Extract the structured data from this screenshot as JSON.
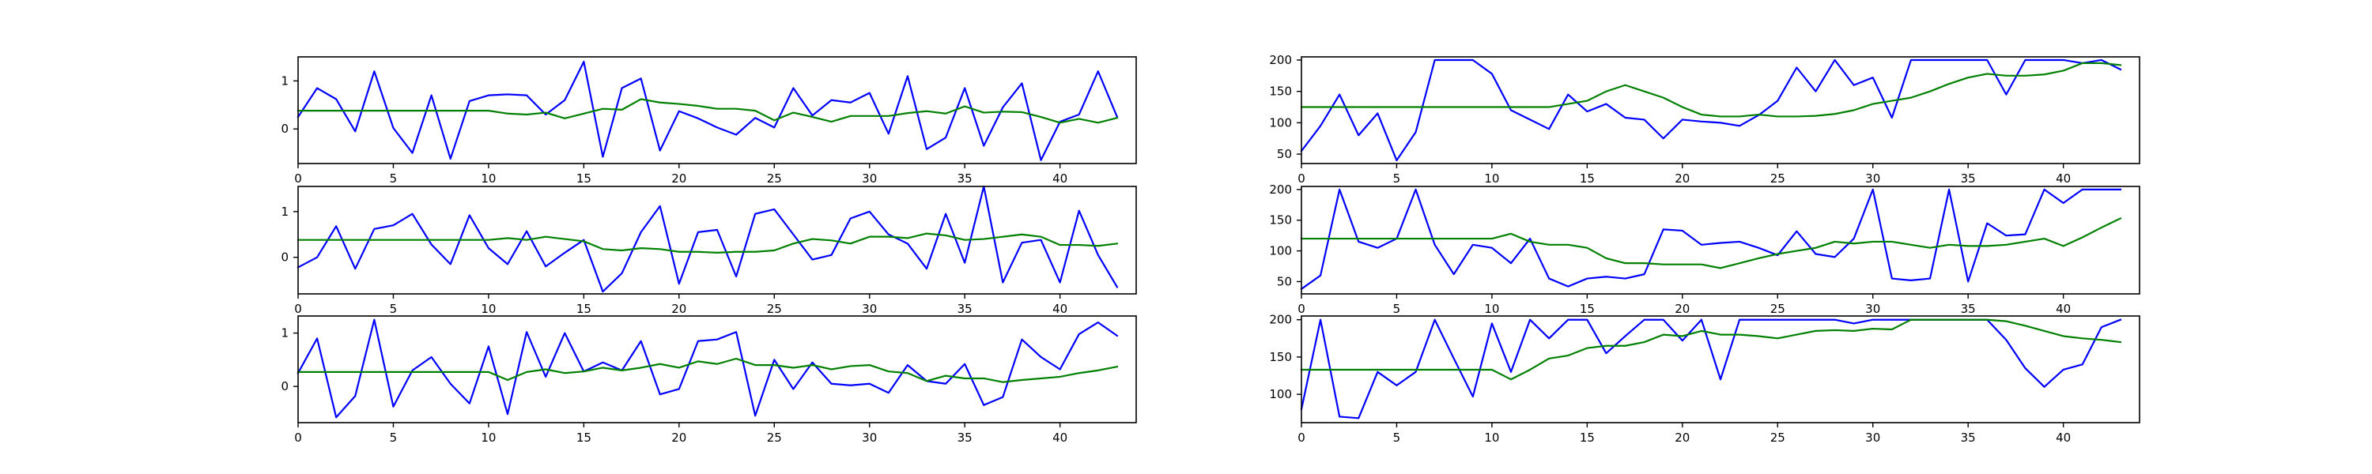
{
  "figure": {
    "line_colors": {
      "blue": "#0000ff",
      "green": "#008000"
    }
  },
  "chart_data": [
    {
      "type": "line",
      "position": "left-1",
      "x": [
        0,
        1,
        2,
        3,
        4,
        5,
        6,
        7,
        8,
        9,
        10,
        11,
        12,
        13,
        14,
        15,
        16,
        17,
        18,
        19,
        20,
        21,
        22,
        23,
        24,
        25,
        26,
        27,
        28,
        29,
        30,
        31,
        32,
        33,
        34,
        35,
        36,
        37,
        38,
        39,
        40,
        41,
        42,
        43
      ],
      "xlim": [
        0,
        44
      ],
      "ylim": [
        -0.72,
        1.5
      ],
      "xticks": [
        0,
        5,
        10,
        15,
        20,
        25,
        30,
        35,
        40
      ],
      "yticks": [
        0,
        1
      ],
      "grid": false,
      "series": [
        {
          "color": "#0000ff",
          "values": [
            0.25,
            0.85,
            0.62,
            -0.05,
            1.2,
            0.02,
            -0.5,
            0.7,
            -0.62,
            0.58,
            0.7,
            0.72,
            0.7,
            0.3,
            0.6,
            1.4,
            -0.58,
            0.85,
            1.05,
            -0.45,
            0.37,
            0.22,
            0.03,
            -0.12,
            0.23,
            0.03,
            0.85,
            0.28,
            0.6,
            0.55,
            0.75,
            -0.1,
            1.1,
            -0.42,
            -0.18,
            0.85,
            -0.35,
            0.45,
            0.95,
            -0.65,
            0.15,
            0.3,
            1.2,
            0.25
          ]
        },
        {
          "color": "#008000",
          "values": [
            0.38,
            0.38,
            0.38,
            0.38,
            0.38,
            0.38,
            0.38,
            0.38,
            0.38,
            0.38,
            0.38,
            0.32,
            0.3,
            0.34,
            0.22,
            0.32,
            0.42,
            0.4,
            0.62,
            0.55,
            0.52,
            0.48,
            0.42,
            0.42,
            0.38,
            0.18,
            0.34,
            0.25,
            0.15,
            0.27,
            0.27,
            0.27,
            0.33,
            0.37,
            0.32,
            0.47,
            0.34,
            0.36,
            0.35,
            0.25,
            0.13,
            0.21,
            0.13,
            0.23
          ]
        }
      ]
    },
    {
      "type": "line",
      "position": "left-2",
      "x": [
        0,
        1,
        2,
        3,
        4,
        5,
        6,
        7,
        8,
        9,
        10,
        11,
        12,
        13,
        14,
        15,
        16,
        17,
        18,
        19,
        20,
        21,
        22,
        23,
        24,
        25,
        26,
        27,
        28,
        29,
        30,
        31,
        32,
        33,
        34,
        35,
        36,
        37,
        38,
        39,
        40,
        41,
        42,
        43
      ],
      "xlim": [
        0,
        44
      ],
      "ylim": [
        -0.8,
        1.55
      ],
      "xticks": [
        0,
        5,
        10,
        15,
        20,
        25,
        30,
        35,
        40
      ],
      "yticks": [
        0,
        1
      ],
      "grid": false,
      "series": [
        {
          "color": "#0000ff",
          "values": [
            -0.22,
            0.0,
            0.68,
            -0.25,
            0.62,
            0.7,
            0.95,
            0.28,
            -0.15,
            0.92,
            0.2,
            -0.15,
            0.57,
            -0.2,
            0.1,
            0.38,
            -0.75,
            -0.35,
            0.55,
            1.12,
            -0.58,
            0.55,
            0.6,
            -0.42,
            0.95,
            1.05,
            0.5,
            -0.05,
            0.05,
            0.85,
            1.0,
            0.5,
            0.3,
            -0.25,
            0.95,
            -0.12,
            1.55,
            -0.55,
            0.32,
            0.38,
            -0.55,
            1.02,
            0.05,
            -0.65
          ]
        },
        {
          "color": "#008000",
          "values": [
            0.38,
            0.38,
            0.38,
            0.38,
            0.38,
            0.38,
            0.38,
            0.38,
            0.38,
            0.38,
            0.38,
            0.42,
            0.38,
            0.45,
            0.4,
            0.35,
            0.18,
            0.15,
            0.2,
            0.18,
            0.12,
            0.12,
            0.1,
            0.12,
            0.12,
            0.15,
            0.3,
            0.4,
            0.37,
            0.3,
            0.45,
            0.45,
            0.42,
            0.52,
            0.48,
            0.38,
            0.4,
            0.45,
            0.5,
            0.45,
            0.27,
            0.27,
            0.25,
            0.3
          ]
        }
      ]
    },
    {
      "type": "line",
      "position": "left-3",
      "x": [
        0,
        1,
        2,
        3,
        4,
        5,
        6,
        7,
        8,
        9,
        10,
        11,
        12,
        13,
        14,
        15,
        16,
        17,
        18,
        19,
        20,
        21,
        22,
        23,
        24,
        25,
        26,
        27,
        28,
        29,
        30,
        31,
        32,
        33,
        34,
        35,
        36,
        37,
        38,
        39,
        40,
        41,
        42,
        43
      ],
      "xlim": [
        0,
        44
      ],
      "ylim": [
        -0.68,
        1.32
      ],
      "xticks": [
        0,
        5,
        10,
        15,
        20,
        25,
        30,
        35,
        40
      ],
      "yticks": [
        0,
        1
      ],
      "grid": false,
      "series": [
        {
          "color": "#0000ff",
          "values": [
            0.25,
            0.9,
            -0.58,
            -0.18,
            1.25,
            -0.38,
            0.3,
            0.55,
            0.05,
            -0.32,
            0.75,
            -0.52,
            1.02,
            0.18,
            1.0,
            0.28,
            0.45,
            0.3,
            0.85,
            -0.15,
            -0.05,
            0.85,
            0.88,
            1.02,
            -0.55,
            0.5,
            -0.05,
            0.45,
            0.05,
            0.02,
            0.05,
            -0.12,
            0.4,
            0.1,
            0.05,
            0.42,
            -0.35,
            -0.2,
            0.88,
            0.55,
            0.32,
            0.98,
            1.2,
            0.95
          ]
        },
        {
          "color": "#008000",
          "values": [
            0.27,
            0.27,
            0.27,
            0.27,
            0.27,
            0.27,
            0.27,
            0.27,
            0.27,
            0.27,
            0.27,
            0.12,
            0.27,
            0.32,
            0.25,
            0.28,
            0.35,
            0.3,
            0.35,
            0.42,
            0.35,
            0.47,
            0.42,
            0.52,
            0.4,
            0.4,
            0.35,
            0.4,
            0.32,
            0.38,
            0.4,
            0.28,
            0.25,
            0.1,
            0.2,
            0.15,
            0.15,
            0.08,
            0.12,
            0.15,
            0.18,
            0.25,
            0.3,
            0.37
          ]
        }
      ]
    },
    {
      "type": "line",
      "position": "right-1",
      "x": [
        0,
        1,
        2,
        3,
        4,
        5,
        6,
        7,
        8,
        9,
        10,
        11,
        12,
        13,
        14,
        15,
        16,
        17,
        18,
        19,
        20,
        21,
        22,
        23,
        24,
        25,
        26,
        27,
        28,
        29,
        30,
        31,
        32,
        33,
        34,
        35,
        36,
        37,
        38,
        39,
        40,
        41,
        42,
        43
      ],
      "xlim": [
        0,
        44
      ],
      "ylim": [
        35,
        205
      ],
      "xticks": [
        0,
        5,
        10,
        15,
        20,
        25,
        30,
        35,
        40
      ],
      "yticks": [
        50,
        100,
        150,
        200
      ],
      "grid": false,
      "series": [
        {
          "color": "#0000ff",
          "values": [
            55,
            95,
            145,
            80,
            115,
            40,
            85,
            200,
            200,
            200,
            178,
            120,
            105,
            90,
            145,
            118,
            130,
            108,
            105,
            75,
            105,
            102,
            100,
            95,
            112,
            135,
            188,
            150,
            200,
            160,
            172,
            108,
            200,
            200,
            200,
            200,
            200,
            145,
            200,
            200,
            200,
            195,
            200,
            185
          ]
        },
        {
          "color": "#008000",
          "values": [
            125,
            125,
            125,
            125,
            125,
            125,
            125,
            125,
            125,
            125,
            125,
            125,
            125,
            125,
            130,
            135,
            150,
            160,
            150,
            140,
            125,
            113,
            110,
            110,
            113,
            110,
            110,
            111,
            114,
            120,
            130,
            135,
            140,
            150,
            162,
            172,
            178,
            175,
            175,
            177,
            183,
            195,
            195,
            192
          ]
        }
      ]
    },
    {
      "type": "line",
      "position": "right-2",
      "x": [
        0,
        1,
        2,
        3,
        4,
        5,
        6,
        7,
        8,
        9,
        10,
        11,
        12,
        13,
        14,
        15,
        16,
        17,
        18,
        19,
        20,
        21,
        22,
        23,
        24,
        25,
        26,
        27,
        28,
        29,
        30,
        31,
        32,
        33,
        34,
        35,
        36,
        37,
        38,
        39,
        40,
        41,
        42,
        43
      ],
      "xlim": [
        0,
        44
      ],
      "ylim": [
        30,
        205
      ],
      "xticks": [
        0,
        5,
        10,
        15,
        20,
        25,
        30,
        35,
        40
      ],
      "yticks": [
        50,
        100,
        150,
        200
      ],
      "grid": false,
      "series": [
        {
          "color": "#0000ff",
          "values": [
            38,
            60,
            200,
            115,
            105,
            120,
            200,
            110,
            62,
            110,
            105,
            80,
            120,
            55,
            42,
            55,
            58,
            55,
            62,
            135,
            133,
            110,
            113,
            115,
            105,
            93,
            132,
            95,
            90,
            120,
            200,
            55,
            52,
            55,
            200,
            50,
            145,
            125,
            127,
            200,
            178,
            200,
            200,
            200
          ]
        },
        {
          "color": "#008000",
          "values": [
            120,
            120,
            120,
            120,
            120,
            120,
            120,
            120,
            120,
            120,
            120,
            128,
            115,
            110,
            110,
            105,
            88,
            80,
            80,
            78,
            78,
            78,
            72,
            80,
            88,
            95,
            100,
            105,
            115,
            112,
            115,
            115,
            110,
            105,
            110,
            108,
            108,
            110,
            115,
            120,
            108,
            122,
            138,
            153
          ]
        }
      ]
    },
    {
      "type": "line",
      "position": "right-3",
      "x": [
        0,
        1,
        2,
        3,
        4,
        5,
        6,
        7,
        8,
        9,
        10,
        11,
        12,
        13,
        14,
        15,
        16,
        17,
        18,
        19,
        20,
        21,
        22,
        23,
        24,
        25,
        26,
        27,
        28,
        29,
        30,
        31,
        32,
        33,
        34,
        35,
        36,
        37,
        38,
        39,
        40,
        41,
        42,
        43
      ],
      "xlim": [
        0,
        44
      ],
      "ylim": [
        62,
        205
      ],
      "xticks": [
        0,
        5,
        10,
        15,
        20,
        25,
        30,
        35,
        40
      ],
      "yticks": [
        100,
        150,
        200
      ],
      "grid": false,
      "series": [
        {
          "color": "#0000ff",
          "values": [
            80,
            200,
            70,
            68,
            130,
            112,
            130,
            200,
            148,
            97,
            195,
            130,
            200,
            175,
            200,
            200,
            155,
            178,
            200,
            200,
            172,
            200,
            120,
            200,
            200,
            200,
            200,
            200,
            200,
            195,
            200,
            200,
            200,
            200,
            200,
            200,
            200,
            173,
            135,
            110,
            133,
            140,
            190,
            200
          ]
        },
        {
          "color": "#008000",
          "values": [
            133,
            133,
            133,
            133,
            133,
            133,
            133,
            133,
            133,
            133,
            133,
            120,
            133,
            148,
            152,
            162,
            165,
            165,
            170,
            180,
            178,
            185,
            180,
            180,
            178,
            175,
            180,
            185,
            186,
            185,
            188,
            187,
            200,
            200,
            200,
            200,
            200,
            198,
            192,
            185,
            178,
            175,
            173,
            170
          ]
        }
      ]
    }
  ]
}
